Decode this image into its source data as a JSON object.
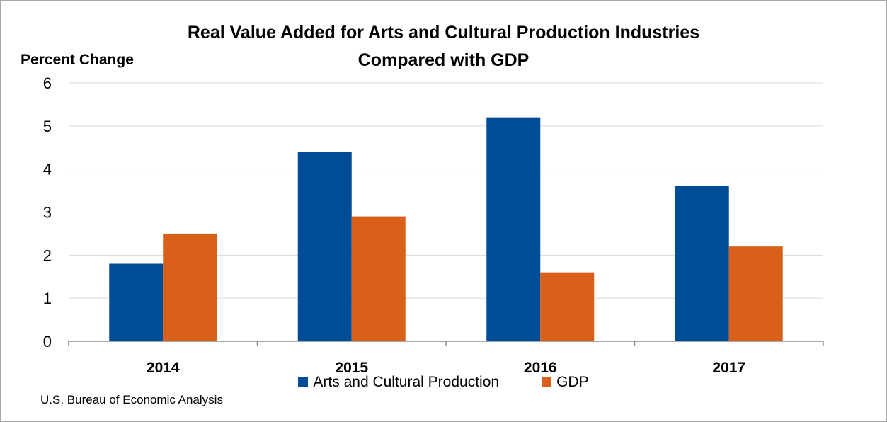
{
  "chart_data": {
    "type": "bar",
    "title": [
      "Real Value Added for Arts and Cultural Production Industries",
      "Compared with GDP"
    ],
    "ylabel": "Percent Change",
    "xlabel": "",
    "categories": [
      "2014",
      "2015",
      "2016",
      "2017"
    ],
    "series": [
      {
        "name": "Arts and Cultural Production",
        "color": "#004c97",
        "values": [
          1.8,
          4.4,
          5.2,
          3.6
        ]
      },
      {
        "name": "GDP",
        "color": "#d9601a",
        "values": [
          2.5,
          2.9,
          1.6,
          2.2
        ]
      }
    ],
    "ylim": [
      0,
      6
    ],
    "yticks": [
      "0",
      "1",
      "2",
      "3",
      "4",
      "5",
      "6"
    ],
    "grid": true,
    "legend": "bottom"
  },
  "source": "U.S. Bureau of Economic Analysis"
}
